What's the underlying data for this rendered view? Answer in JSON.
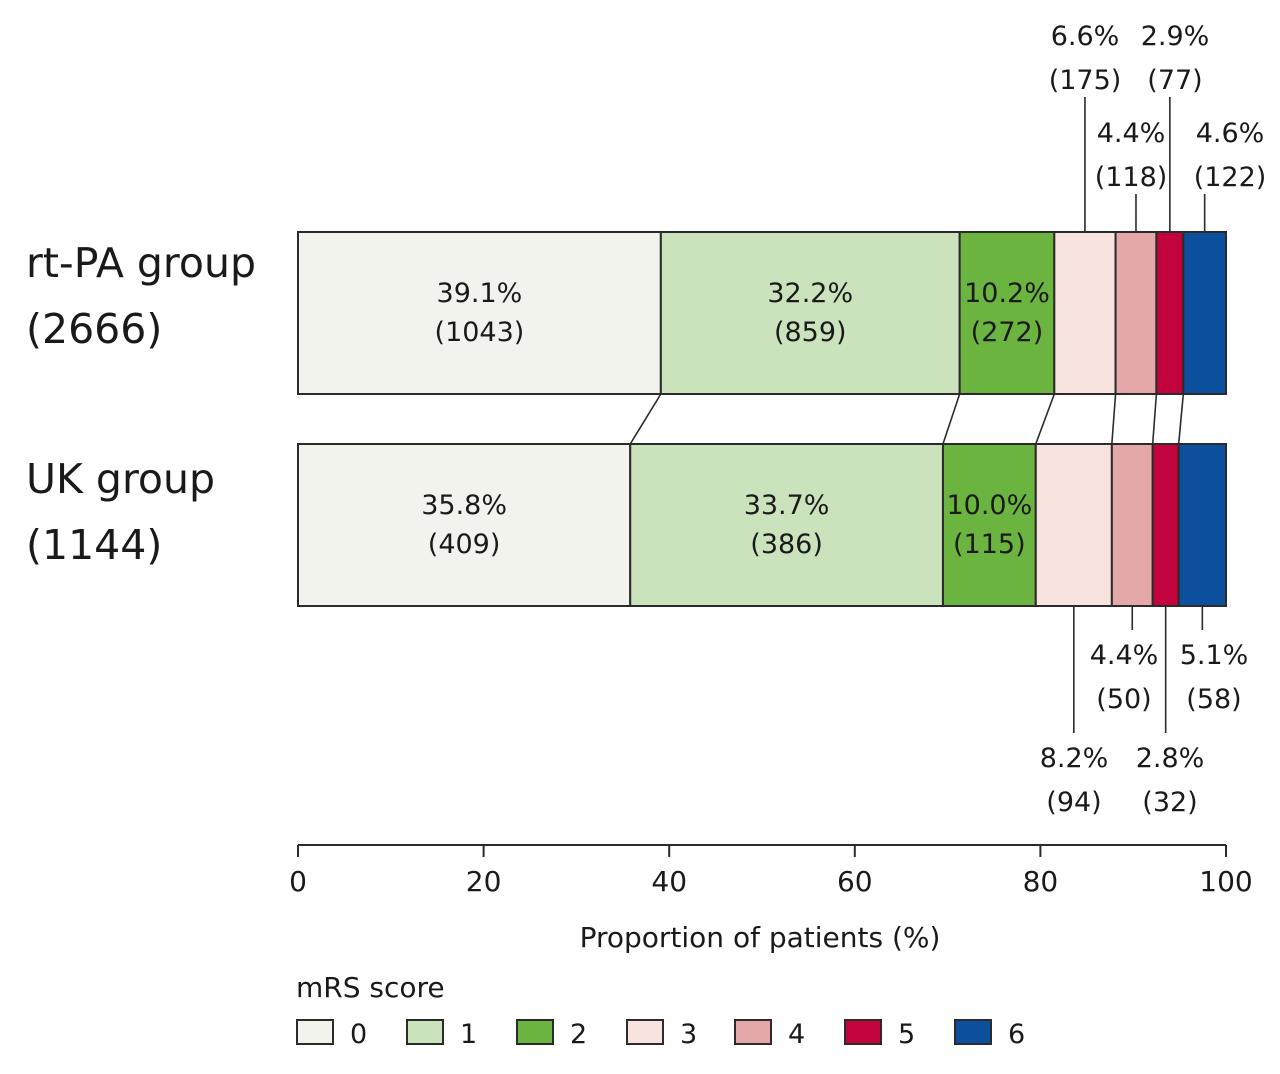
{
  "chart_data": {
    "type": "bar",
    "orientation": "horizontal",
    "stacked": true,
    "xlabel": "Proportion of patients (%)",
    "xlim": [
      0,
      100
    ],
    "xticks": [
      "0",
      "20",
      "40",
      "60",
      "80",
      "100"
    ],
    "legend": {
      "title": "mRS score",
      "placement": "bottom-left",
      "entries": [
        {
          "label": "0",
          "color": "#f2f3ed"
        },
        {
          "label": "1",
          "color": "#cbe3bd"
        },
        {
          "label": "2",
          "color": "#6bb43f"
        },
        {
          "label": "3",
          "color": "#f9e3df"
        },
        {
          "label": "4",
          "color": "#e5a8a8"
        },
        {
          "label": "5",
          "color": "#c2033d"
        },
        {
          "label": "6",
          "color": "#0c4f9c"
        }
      ]
    },
    "groups": [
      {
        "name": "rt-PA group",
        "n": "(2666)",
        "values": [
          39.1,
          32.2,
          10.2,
          6.6,
          4.4,
          2.9,
          4.6
        ],
        "pct_labels": [
          "39.1%",
          "32.2%",
          "10.2%",
          "6.6%",
          "4.4%",
          "2.9%",
          "4.6%"
        ],
        "count_labels": [
          "(1043)",
          "(859)",
          "(272)",
          "(175)",
          "(118)",
          "(77)",
          "(122)"
        ]
      },
      {
        "name": "UK group",
        "n": "(1144)",
        "values": [
          35.8,
          33.7,
          10.0,
          8.2,
          4.4,
          2.8,
          5.1
        ],
        "pct_labels": [
          "35.8%",
          "33.7%",
          "10.0%",
          "8.2%",
          "4.4%",
          "2.8%",
          "5.1%"
        ],
        "count_labels": [
          "(409)",
          "(386)",
          "(115)",
          "(94)",
          "(50)",
          "(32)",
          "(58)"
        ]
      }
    ]
  }
}
